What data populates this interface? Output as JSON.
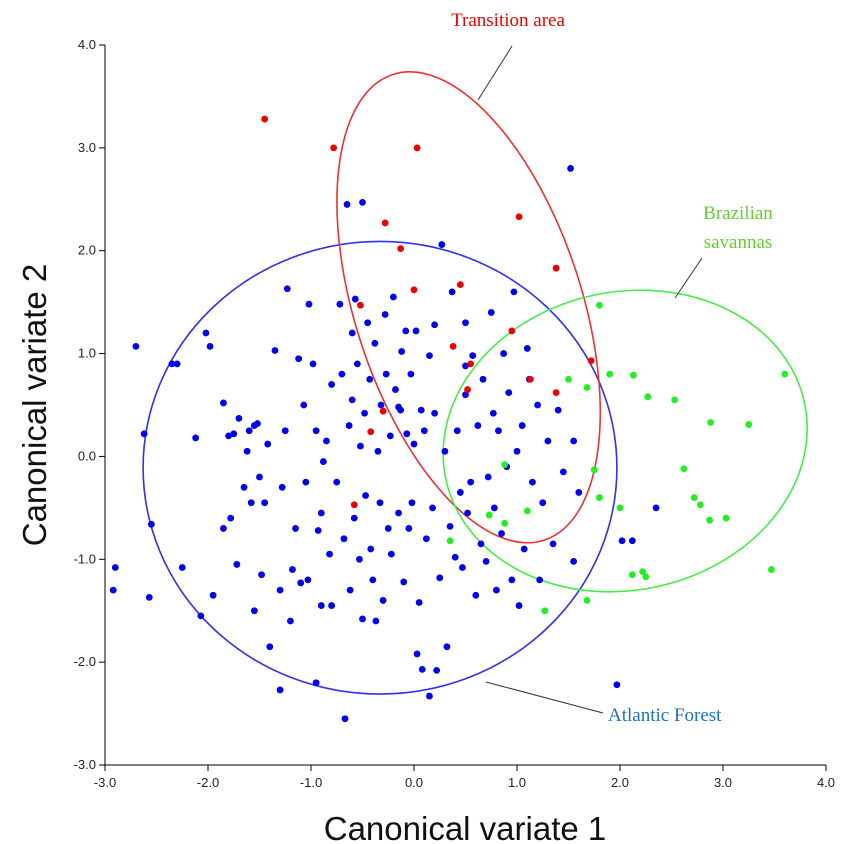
{
  "chart_data": {
    "type": "scatter",
    "xlabel": "Canonical variate 1",
    "ylabel": "Canonical variate 2",
    "xlim": [
      -3.0,
      4.0
    ],
    "ylim": [
      -3.0,
      4.0
    ],
    "xticks": [
      -3.0,
      -2.0,
      -1.0,
      0.0,
      1.0,
      2.0,
      3.0,
      4.0
    ],
    "yticks": [
      -3.0,
      -2.0,
      -1.0,
      0.0,
      1.0,
      2.0,
      3.0,
      4.0
    ],
    "xtick_labels": [
      "-3.0",
      "-2.0",
      "-1.0",
      "0.0",
      "1.0",
      "2.0",
      "3.0",
      "4.0"
    ],
    "ytick_labels": [
      "-3.0",
      "-2.0",
      "-1.0",
      "0.0",
      "1.0",
      "2.0",
      "3.0",
      "4.0"
    ],
    "grid": false,
    "series": [
      {
        "name": "Atlantic Forest",
        "color": "#0000ee",
        "points": [
          [
            -2.9,
            -1.08
          ],
          [
            -2.92,
            -1.3
          ],
          [
            -2.7,
            1.07
          ],
          [
            -2.62,
            0.22
          ],
          [
            -2.55,
            -0.66
          ],
          [
            -2.57,
            -1.37
          ],
          [
            -2.35,
            0.9
          ],
          [
            -2.3,
            0.9
          ],
          [
            -2.25,
            -1.08
          ],
          [
            -2.12,
            0.18
          ],
          [
            -2.07,
            -1.55
          ],
          [
            -2.02,
            1.2
          ],
          [
            -1.98,
            1.07
          ],
          [
            -1.95,
            -1.35
          ],
          [
            -1.85,
            0.52
          ],
          [
            -1.85,
            -0.7
          ],
          [
            -1.8,
            0.2
          ],
          [
            -1.78,
            -0.6
          ],
          [
            -1.75,
            0.22
          ],
          [
            -1.72,
            -1.05
          ],
          [
            -1.7,
            0.37
          ],
          [
            -1.65,
            -0.3
          ],
          [
            -1.62,
            0.05
          ],
          [
            -1.6,
            0.25
          ],
          [
            -1.58,
            -0.45
          ],
          [
            -1.55,
            0.3
          ],
          [
            -1.55,
            -1.5
          ],
          [
            -1.52,
            0.32
          ],
          [
            -1.5,
            -0.2
          ],
          [
            -1.48,
            -1.15
          ],
          [
            -1.45,
            -0.45
          ],
          [
            -1.42,
            0.12
          ],
          [
            -1.4,
            -1.85
          ],
          [
            -1.35,
            1.03
          ],
          [
            -1.3,
            -2.27
          ],
          [
            -1.3,
            -1.3
          ],
          [
            -1.28,
            -0.3
          ],
          [
            -1.25,
            0.25
          ],
          [
            -1.23,
            1.63
          ],
          [
            -1.2,
            -1.6
          ],
          [
            -1.18,
            -1.1
          ],
          [
            -1.15,
            -0.7
          ],
          [
            -1.12,
            0.95
          ],
          [
            -1.1,
            -1.23
          ],
          [
            -1.07,
            0.5
          ],
          [
            -1.05,
            -0.25
          ],
          [
            -1.03,
            -1.2
          ],
          [
            -1.02,
            1.48
          ],
          [
            -0.98,
            0.9
          ],
          [
            -0.95,
            -2.2
          ],
          [
            -0.95,
            0.25
          ],
          [
            -0.93,
            -0.72
          ],
          [
            -0.9,
            -1.45
          ],
          [
            -0.9,
            -0.55
          ],
          [
            -0.88,
            -0.05
          ],
          [
            -0.85,
            0.15
          ],
          [
            -0.82,
            -0.95
          ],
          [
            -0.8,
            0.7
          ],
          [
            -0.8,
            -1.45
          ],
          [
            -0.75,
            -0.25
          ],
          [
            -0.72,
            1.48
          ],
          [
            -0.7,
            0.8
          ],
          [
            -0.68,
            -0.8
          ],
          [
            -0.67,
            -2.55
          ],
          [
            -0.65,
            2.45
          ],
          [
            -0.63,
            0.3
          ],
          [
            -0.62,
            -1.3
          ],
          [
            -0.6,
            1.2
          ],
          [
            -0.6,
            0.55
          ],
          [
            -0.58,
            -0.6
          ],
          [
            -0.57,
            1.53
          ],
          [
            -0.55,
            0.9
          ],
          [
            -0.53,
            -1.0
          ],
          [
            -0.52,
            0.1
          ],
          [
            -0.5,
            2.47
          ],
          [
            -0.5,
            -1.58
          ],
          [
            -0.48,
            0.42
          ],
          [
            -0.47,
            -0.38
          ],
          [
            -0.45,
            1.3
          ],
          [
            -0.43,
            0.75
          ],
          [
            -0.42,
            -0.9
          ],
          [
            -0.4,
            -1.2
          ],
          [
            -0.38,
            1.1
          ],
          [
            -0.37,
            -1.6
          ],
          [
            -0.35,
            0.05
          ],
          [
            -0.33,
            -0.45
          ],
          [
            -0.32,
            0.5
          ],
          [
            -0.3,
            -1.4
          ],
          [
            -0.28,
            1.38
          ],
          [
            -0.27,
            0.8
          ],
          [
            -0.25,
            -0.7
          ],
          [
            -0.23,
            0.2
          ],
          [
            -0.22,
            -0.95
          ],
          [
            -0.2,
            1.55
          ],
          [
            -0.18,
            0.65
          ],
          [
            -0.15,
            -0.55
          ],
          [
            -0.13,
            0.45
          ],
          [
            -0.12,
            1.02
          ],
          [
            -0.1,
            -1.22
          ],
          [
            -0.08,
            1.22
          ],
          [
            -0.07,
            0.22
          ],
          [
            -0.05,
            -0.7
          ],
          [
            -0.03,
            0.8
          ],
          [
            -0.02,
            -0.45
          ],
          [
            0.0,
            0.12
          ],
          [
            0.02,
            1.22
          ],
          [
            0.03,
            -1.92
          ],
          [
            0.05,
            -1.42
          ],
          [
            0.07,
            0.45
          ],
          [
            0.08,
            -2.07
          ],
          [
            0.1,
            0.25
          ],
          [
            0.12,
            -0.8
          ],
          [
            0.15,
            0.98
          ],
          [
            0.15,
            -2.33
          ],
          [
            0.18,
            -0.5
          ],
          [
            0.2,
            0.42
          ],
          [
            0.22,
            -2.08
          ],
          [
            0.25,
            -1.18
          ],
          [
            0.27,
            2.06
          ],
          [
            0.3,
            0.05
          ],
          [
            0.32,
            -1.85
          ],
          [
            0.35,
            -0.68
          ],
          [
            0.37,
            1.6
          ],
          [
            0.4,
            -0.98
          ],
          [
            0.42,
            0.25
          ],
          [
            0.45,
            -0.35
          ],
          [
            0.47,
            -1.08
          ],
          [
            0.5,
            1.3
          ],
          [
            0.5,
            0.6
          ],
          [
            0.52,
            -0.55
          ],
          [
            0.55,
            -0.25
          ],
          [
            0.57,
            0.98
          ],
          [
            0.6,
            -1.35
          ],
          [
            0.62,
            0.3
          ],
          [
            0.65,
            -0.85
          ],
          [
            0.67,
            0.75
          ],
          [
            0.7,
            -1.02
          ],
          [
            0.72,
            -0.2
          ],
          [
            0.75,
            1.4
          ],
          [
            0.77,
            0.42
          ],
          [
            0.78,
            -0.5
          ],
          [
            0.8,
            -1.3
          ],
          [
            0.82,
            0.25
          ],
          [
            0.85,
            -0.75
          ],
          [
            0.87,
            1.0
          ],
          [
            0.9,
            -0.1
          ],
          [
            0.92,
            0.62
          ],
          [
            0.95,
            -1.2
          ],
          [
            0.97,
            1.6
          ],
          [
            1.0,
            0.05
          ],
          [
            1.02,
            -1.45
          ],
          [
            1.05,
            0.3
          ],
          [
            1.07,
            -0.9
          ],
          [
            1.1,
            1.05
          ],
          [
            1.12,
            0.75
          ],
          [
            1.15,
            -0.25
          ],
          [
            1.2,
            0.5
          ],
          [
            1.22,
            -1.2
          ],
          [
            1.25,
            -0.45
          ],
          [
            1.3,
            0.15
          ],
          [
            1.35,
            -0.85
          ],
          [
            1.4,
            0.45
          ],
          [
            1.45,
            -0.15
          ],
          [
            1.52,
            2.8
          ],
          [
            1.55,
            0.15
          ],
          [
            1.55,
            -1.02
          ],
          [
            1.6,
            -0.35
          ],
          [
            2.02,
            -0.82
          ],
          [
            2.12,
            -0.82
          ],
          [
            2.35,
            -0.5
          ],
          [
            1.97,
            -2.22
          ],
          [
            0.5,
            0.88
          ],
          [
            0.2,
            1.28
          ],
          [
            -0.15,
            0.48
          ]
        ]
      },
      {
        "name": "Transition area",
        "color": "#ee0000",
        "points": [
          [
            -1.45,
            3.28
          ],
          [
            -0.78,
            3.0
          ],
          [
            0.03,
            3.0
          ],
          [
            -0.28,
            2.27
          ],
          [
            -0.13,
            2.02
          ],
          [
            1.02,
            2.33
          ],
          [
            1.38,
            1.83
          ],
          [
            0.0,
            1.62
          ],
          [
            0.45,
            1.67
          ],
          [
            -0.52,
            1.47
          ],
          [
            0.95,
            1.22
          ],
          [
            0.38,
            1.07
          ],
          [
            1.72,
            0.93
          ],
          [
            0.55,
            0.9
          ],
          [
            1.13,
            0.75
          ],
          [
            0.52,
            0.65
          ],
          [
            1.38,
            0.62
          ],
          [
            -0.3,
            0.44
          ],
          [
            -0.42,
            0.24
          ],
          [
            -0.58,
            -0.47
          ]
        ]
      },
      {
        "name": "Brazilian savannas",
        "color": "#22ee22",
        "points": [
          [
            1.8,
            1.47
          ],
          [
            1.5,
            0.75
          ],
          [
            1.68,
            0.67
          ],
          [
            1.9,
            0.8
          ],
          [
            2.13,
            0.79
          ],
          [
            2.27,
            0.58
          ],
          [
            2.53,
            0.55
          ],
          [
            2.88,
            0.33
          ],
          [
            3.25,
            0.31
          ],
          [
            3.6,
            0.8
          ],
          [
            1.75,
            -0.13
          ],
          [
            2.62,
            -0.12
          ],
          [
            1.8,
            -0.4
          ],
          [
            2.72,
            -0.4
          ],
          [
            2.78,
            -0.47
          ],
          [
            2.0,
            -0.5
          ],
          [
            2.87,
            -0.62
          ],
          [
            3.03,
            -0.6
          ],
          [
            0.88,
            -0.65
          ],
          [
            1.1,
            -0.53
          ],
          [
            0.73,
            -0.57
          ],
          [
            0.88,
            -0.08
          ],
          [
            2.12,
            -1.15
          ],
          [
            2.22,
            -1.12
          ],
          [
            2.25,
            -1.17
          ],
          [
            1.68,
            -1.4
          ],
          [
            3.47,
            -1.1
          ],
          [
            1.27,
            -1.5
          ],
          [
            0.35,
            -0.82
          ]
        ]
      }
    ],
    "ellipses": [
      {
        "series": "Atlantic Forest",
        "color": "#3030ee",
        "cx": -0.33,
        "cy": -0.11,
        "rx": 2.3,
        "ry": 2.2,
        "angle_deg": 0
      },
      {
        "series": "Transition area",
        "color": "#ee3030",
        "cx": 0.53,
        "cy": 1.45,
        "rx": 1.1,
        "ry": 2.38,
        "angle_deg": -18
      },
      {
        "series": "Brazilian savannas",
        "color": "#44ee44",
        "cx": 2.05,
        "cy": 0.15,
        "rx": 1.78,
        "ry": 1.45,
        "angle_deg": -12
      }
    ],
    "annotations": [
      {
        "text": "Transition area",
        "color": "#ee0000",
        "lines": [
          "Transition area"
        ]
      },
      {
        "text": "Brazilian savannas",
        "color": "#66cc33",
        "lines": [
          "Brazilian",
          "savannas"
        ]
      },
      {
        "text": "Atlantic Forest",
        "color": "#1f6fc8",
        "lines": [
          "Atlantic Forest"
        ]
      }
    ]
  }
}
